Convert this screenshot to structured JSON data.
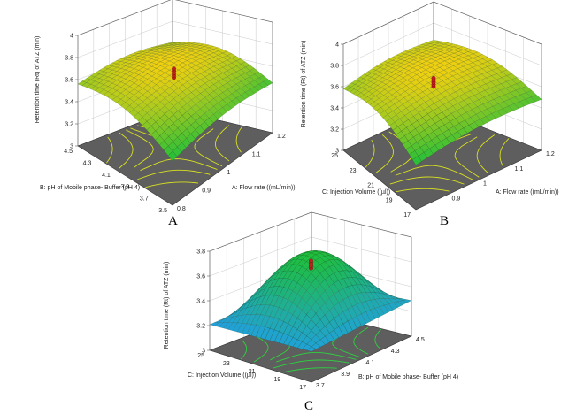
{
  "chart_data": [
    {
      "type": "surface",
      "panel_label": "A",
      "zlabel": "Retention time (Rt) of ATZ (min)",
      "zlim": [
        3,
        4
      ],
      "z_ticks": [
        "3",
        "3.2",
        "3.4",
        "3.6",
        "3.8",
        "4"
      ],
      "x_axis": {
        "label": "A: Flow rate  ((mL/min))",
        "range": [
          0.8,
          1.2
        ],
        "ticks": [
          "0.8",
          "0.9",
          "1",
          "1.1",
          "1.2"
        ]
      },
      "y_axis": {
        "label": "B: pH of Mobile phase- Buffer (pH 4)",
        "range": [
          3.5,
          4.5
        ],
        "ticks": [
          "3.5",
          "3.7",
          "3.9",
          "4.1",
          "4.3",
          "4.5"
        ]
      },
      "design_points_z": [
        3.64,
        3.66,
        3.68,
        3.7,
        3.72
      ],
      "colors": {
        "low": "#1fbf3a",
        "high": "#f0d010",
        "floor": "#5e5e5e",
        "contour": "#d8e020",
        "points": "#c02020"
      }
    },
    {
      "type": "surface",
      "panel_label": "B",
      "zlabel": "Retention time (Rt) of ATZ (min)",
      "zlim": [
        3,
        4
      ],
      "z_ticks": [
        "3",
        "3.2",
        "3.4",
        "3.6",
        "3.8",
        "4"
      ],
      "x_axis": {
        "label": "A: Flow rate  ((mL/min))",
        "range": [
          0.8,
          1.2
        ],
        "ticks": [
          "0.9",
          "1",
          "1.1",
          "1.2"
        ]
      },
      "y_axis": {
        "label": "C: Injection Volume  ((µl))",
        "range": [
          17,
          25
        ],
        "ticks": [
          "17",
          "19",
          "21",
          "23",
          "25"
        ]
      },
      "design_points_z": [
        3.64,
        3.66,
        3.68,
        3.7,
        3.72
      ],
      "colors": {
        "low": "#1fbf3a",
        "high": "#f0d010",
        "floor": "#5e5e5e",
        "contour": "#d8e020",
        "points": "#c02020"
      }
    },
    {
      "type": "surface",
      "panel_label": "C",
      "zlabel": "Retention time (Rt) of ATZ (min)",
      "zlim": [
        3,
        3.8
      ],
      "z_ticks": [
        "3",
        "3.2",
        "3.4",
        "3.6",
        "3.8"
      ],
      "x_axis": {
        "label": "B: pH of Mobile phase- Buffer (pH 4)",
        "range": [
          3.5,
          4.5
        ],
        "ticks": [
          "3.7",
          "3.9",
          "4.1",
          "4.3",
          "4.5"
        ]
      },
      "y_axis": {
        "label": "C: Injection Volume  ((µl))",
        "range": [
          17,
          25
        ],
        "ticks": [
          "17",
          "19",
          "21",
          "23",
          "25"
        ]
      },
      "design_points_z": [
        3.62,
        3.64,
        3.66,
        3.68
      ],
      "colors": {
        "low": "#20a0e0",
        "high": "#1fbf3a",
        "floor": "#5e5e5e",
        "contour": "#2fd040",
        "points": "#c02020"
      }
    }
  ]
}
